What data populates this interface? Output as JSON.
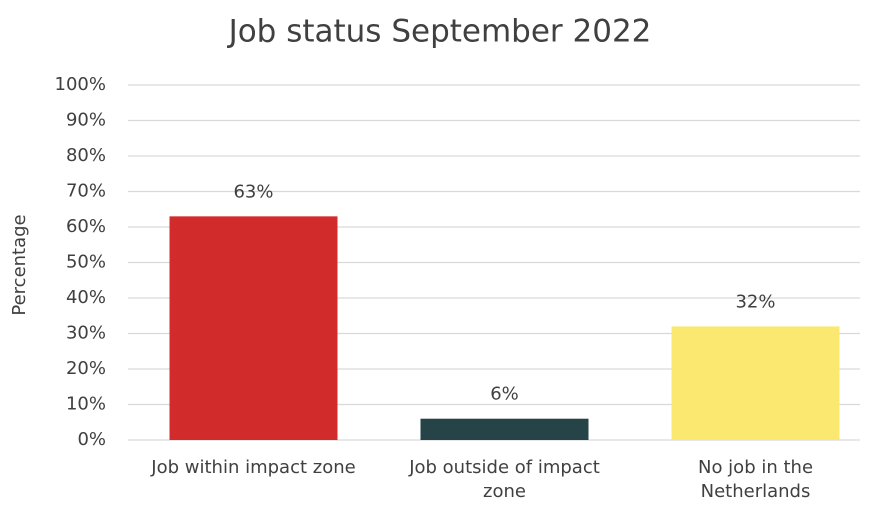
{
  "chart_data": {
    "type": "bar",
    "title": "Job status September 2022",
    "y_label": "Percentage",
    "categories": [
      "Job within impact zone",
      "Job outside of impact zone",
      "No job in the Netherlands"
    ],
    "values": [
      63,
      6,
      32
    ],
    "value_labels": [
      "63%",
      "6%",
      "32%"
    ],
    "colors": [
      "#d22b2b",
      "#264348",
      "#fbe870"
    ],
    "ylim": [
      0,
      100
    ],
    "yticks": [
      {
        "value": 0,
        "label": "0%"
      },
      {
        "value": 10,
        "label": "10%"
      },
      {
        "value": 20,
        "label": "20%"
      },
      {
        "value": 30,
        "label": "30%"
      },
      {
        "value": 40,
        "label": "40%"
      },
      {
        "value": 50,
        "label": "50%"
      },
      {
        "value": 60,
        "label": "60%"
      },
      {
        "value": 70,
        "label": "70%"
      },
      {
        "value": 80,
        "label": "80%"
      },
      {
        "value": 90,
        "label": "90%"
      },
      {
        "value": 100,
        "label": "100%"
      }
    ],
    "grid": true
  }
}
